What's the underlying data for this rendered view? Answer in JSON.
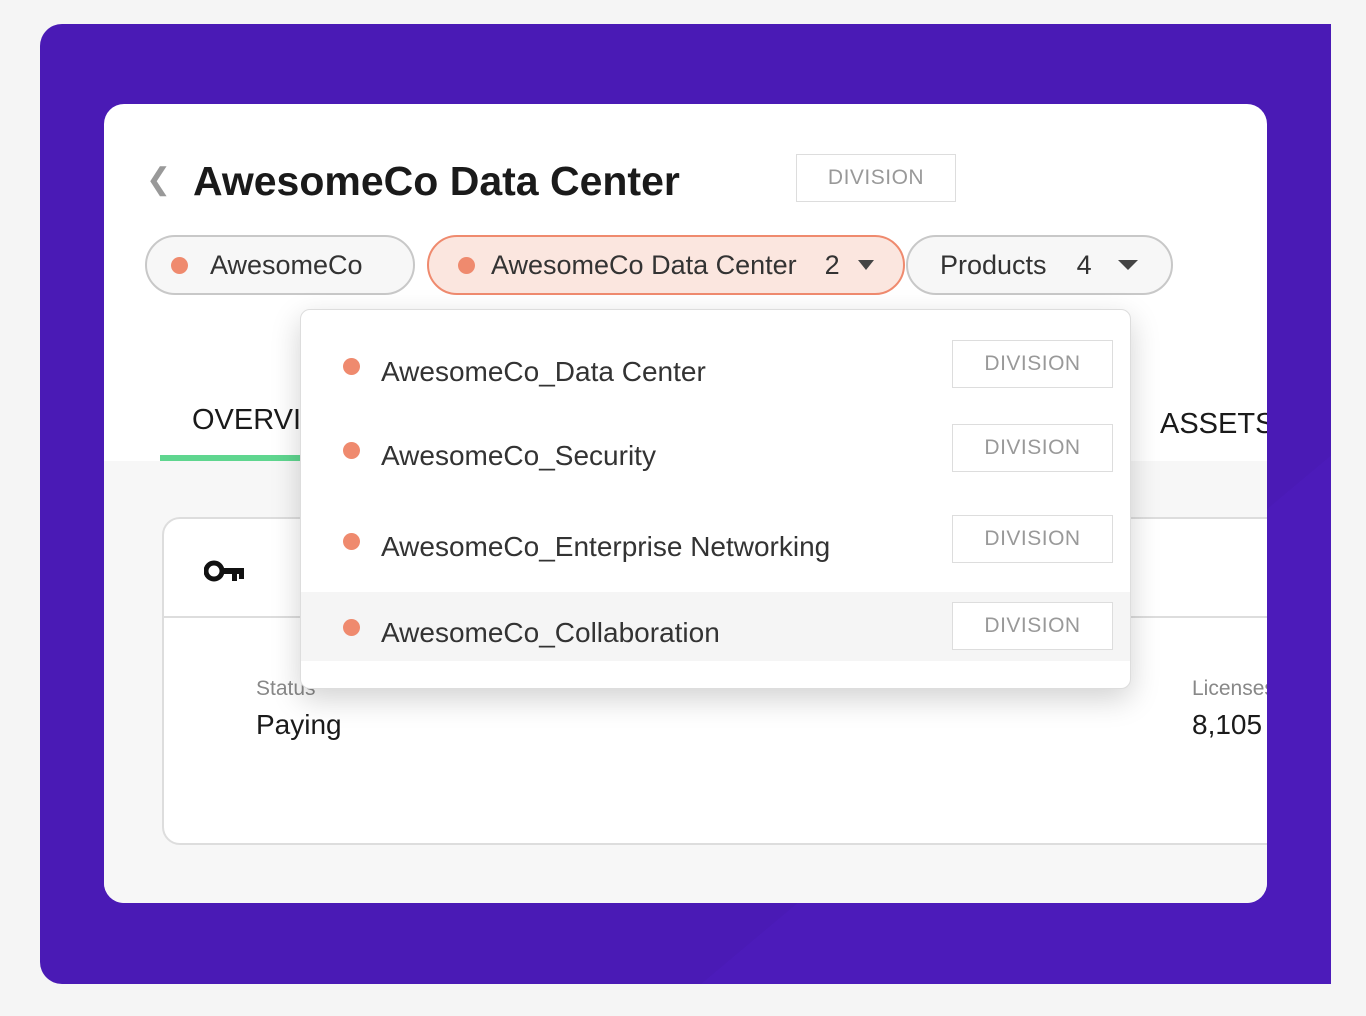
{
  "header": {
    "title": "AwesomeCo Data Center",
    "type_badge": "DIVISION"
  },
  "breadcrumbs": [
    {
      "label": "AwesomeCo"
    },
    {
      "label": "AwesomeCo Data Center",
      "count": "2"
    },
    {
      "label": "Products",
      "count": "4"
    }
  ],
  "tabs": {
    "overview": "OVERVIEW",
    "assets": "ASSETS"
  },
  "dropdown": {
    "items": [
      {
        "name": "AwesomeCo_Data Center",
        "badge": "DIVISION"
      },
      {
        "name": "AwesomeCo_Security",
        "badge": "DIVISION"
      },
      {
        "name": "AwesomeCo_Enterprise Networking",
        "badge": "DIVISION"
      },
      {
        "name": "AwesomeCo_Collaboration",
        "badge": "DIVISION"
      }
    ]
  },
  "details": {
    "status_label": "Status",
    "status_value": "Paying",
    "licenses_label": "Licenses",
    "licenses_value": "8,105"
  },
  "colors": {
    "background": "#4a1ab5",
    "accent": "#ef8a6e",
    "tab_underline": "#5fd68f"
  }
}
